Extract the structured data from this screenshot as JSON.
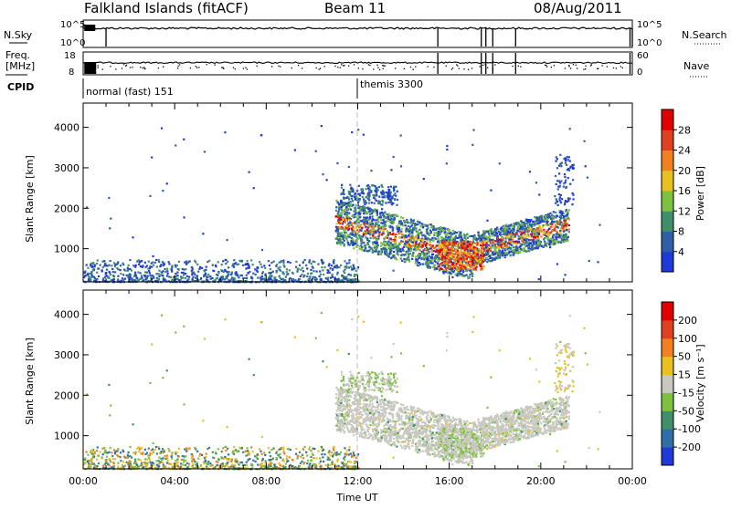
{
  "header": {
    "station": "Falkland Islands (fitACF)",
    "beam": "Beam 11",
    "date": "08/Aug/2011"
  },
  "top_panels": {
    "nsky_label": "N.Sky",
    "nsearch_label": "N.Search",
    "freq_label_1": "Freq.",
    "freq_label_2": "[MHz]",
    "nave_label": "Nave",
    "cpid_label": "CPID",
    "nsky_ticks": [
      "10^5",
      "10^0"
    ],
    "nsearch_ticks": [
      "10^5",
      "10^0"
    ],
    "freq_ticks": [
      "18",
      "8"
    ],
    "nave_ticks": [
      "60",
      "0"
    ],
    "cpid_segments": [
      {
        "label": "normal (fast) 151",
        "start_hour": 0
      },
      {
        "label": "themis 3300",
        "start_hour": 12
      }
    ]
  },
  "chart_data": [
    {
      "type": "heatmap",
      "name": "power",
      "ylabel": "Slant Range [km]",
      "xlabel": "",
      "xlim": [
        0,
        24
      ],
      "ylim": [
        180,
        4600
      ],
      "yticks": [
        1000,
        2000,
        3000,
        4000
      ],
      "colorbar": {
        "label": "Power [dB]",
        "ticks": [
          "4",
          "8",
          "12",
          "16",
          "20",
          "24",
          "28"
        ],
        "colors": [
          "#1f3ad8",
          "#2f5fa8",
          "#3f8f6a",
          "#7ec040",
          "#e8c020",
          "#f08020",
          "#e04020",
          "#e00000"
        ]
      }
    },
    {
      "type": "heatmap",
      "name": "velocity",
      "ylabel": "Slant Range [km]",
      "xlabel": "Time UT",
      "xlim": [
        0,
        24
      ],
      "ylim": [
        180,
        4600
      ],
      "yticks": [
        1000,
        2000,
        3000,
        4000
      ],
      "xticks": [
        "00:00",
        "04:00",
        "08:00",
        "12:00",
        "16:00",
        "20:00",
        "00:00"
      ],
      "colorbar": {
        "label": "Velocity [m s⁻¹]",
        "ticks": [
          "200",
          "100",
          "50",
          "15",
          "-15",
          "-50",
          "-100",
          "-200"
        ],
        "colors": [
          "#1f3ad8",
          "#2f6fa8",
          "#3f8f6a",
          "#7ec040",
          "#c8c8c0",
          "#e8c020",
          "#f08020",
          "#e04020",
          "#e00000"
        ]
      }
    }
  ]
}
